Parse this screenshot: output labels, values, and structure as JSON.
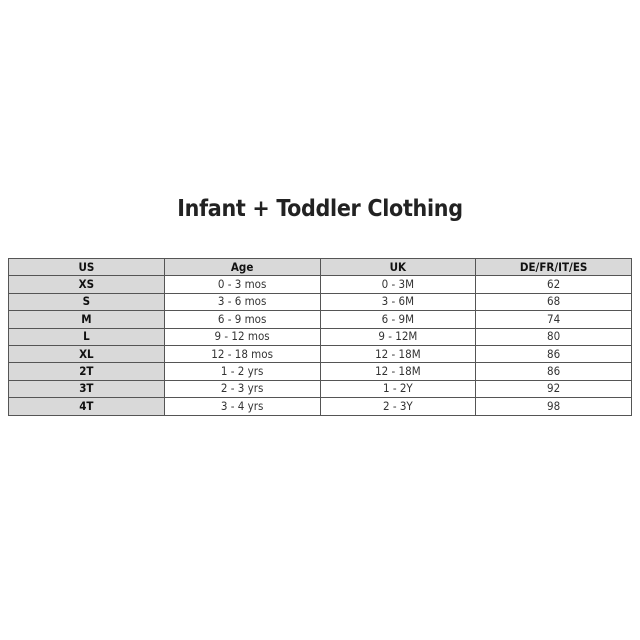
{
  "title": "Infant + Toddler Clothing",
  "table": {
    "headers": [
      "US",
      "Age",
      "UK",
      "DE/FR/IT/ES"
    ],
    "rows": [
      [
        "XS",
        "0 - 3 mos",
        "0 - 3M",
        "62"
      ],
      [
        "S",
        "3 - 6 mos",
        "3 - 6M",
        "68"
      ],
      [
        "M",
        "6 - 9 mos",
        "6 - 9M",
        "74"
      ],
      [
        "L",
        "9 - 12 mos",
        "9 - 12M",
        "80"
      ],
      [
        "XL",
        "12 - 18 mos",
        "12 - 18M",
        "86"
      ],
      [
        "2T",
        "1 - 2 yrs",
        "12 - 18M",
        "86"
      ],
      [
        "3T",
        "2 - 3 yrs",
        "1 - 2Y",
        "92"
      ],
      [
        "4T",
        "3 - 4 yrs",
        "2 - 3Y",
        "98"
      ]
    ]
  },
  "colors": {
    "header_fill": "#d9d9d9",
    "border": "#555555"
  }
}
